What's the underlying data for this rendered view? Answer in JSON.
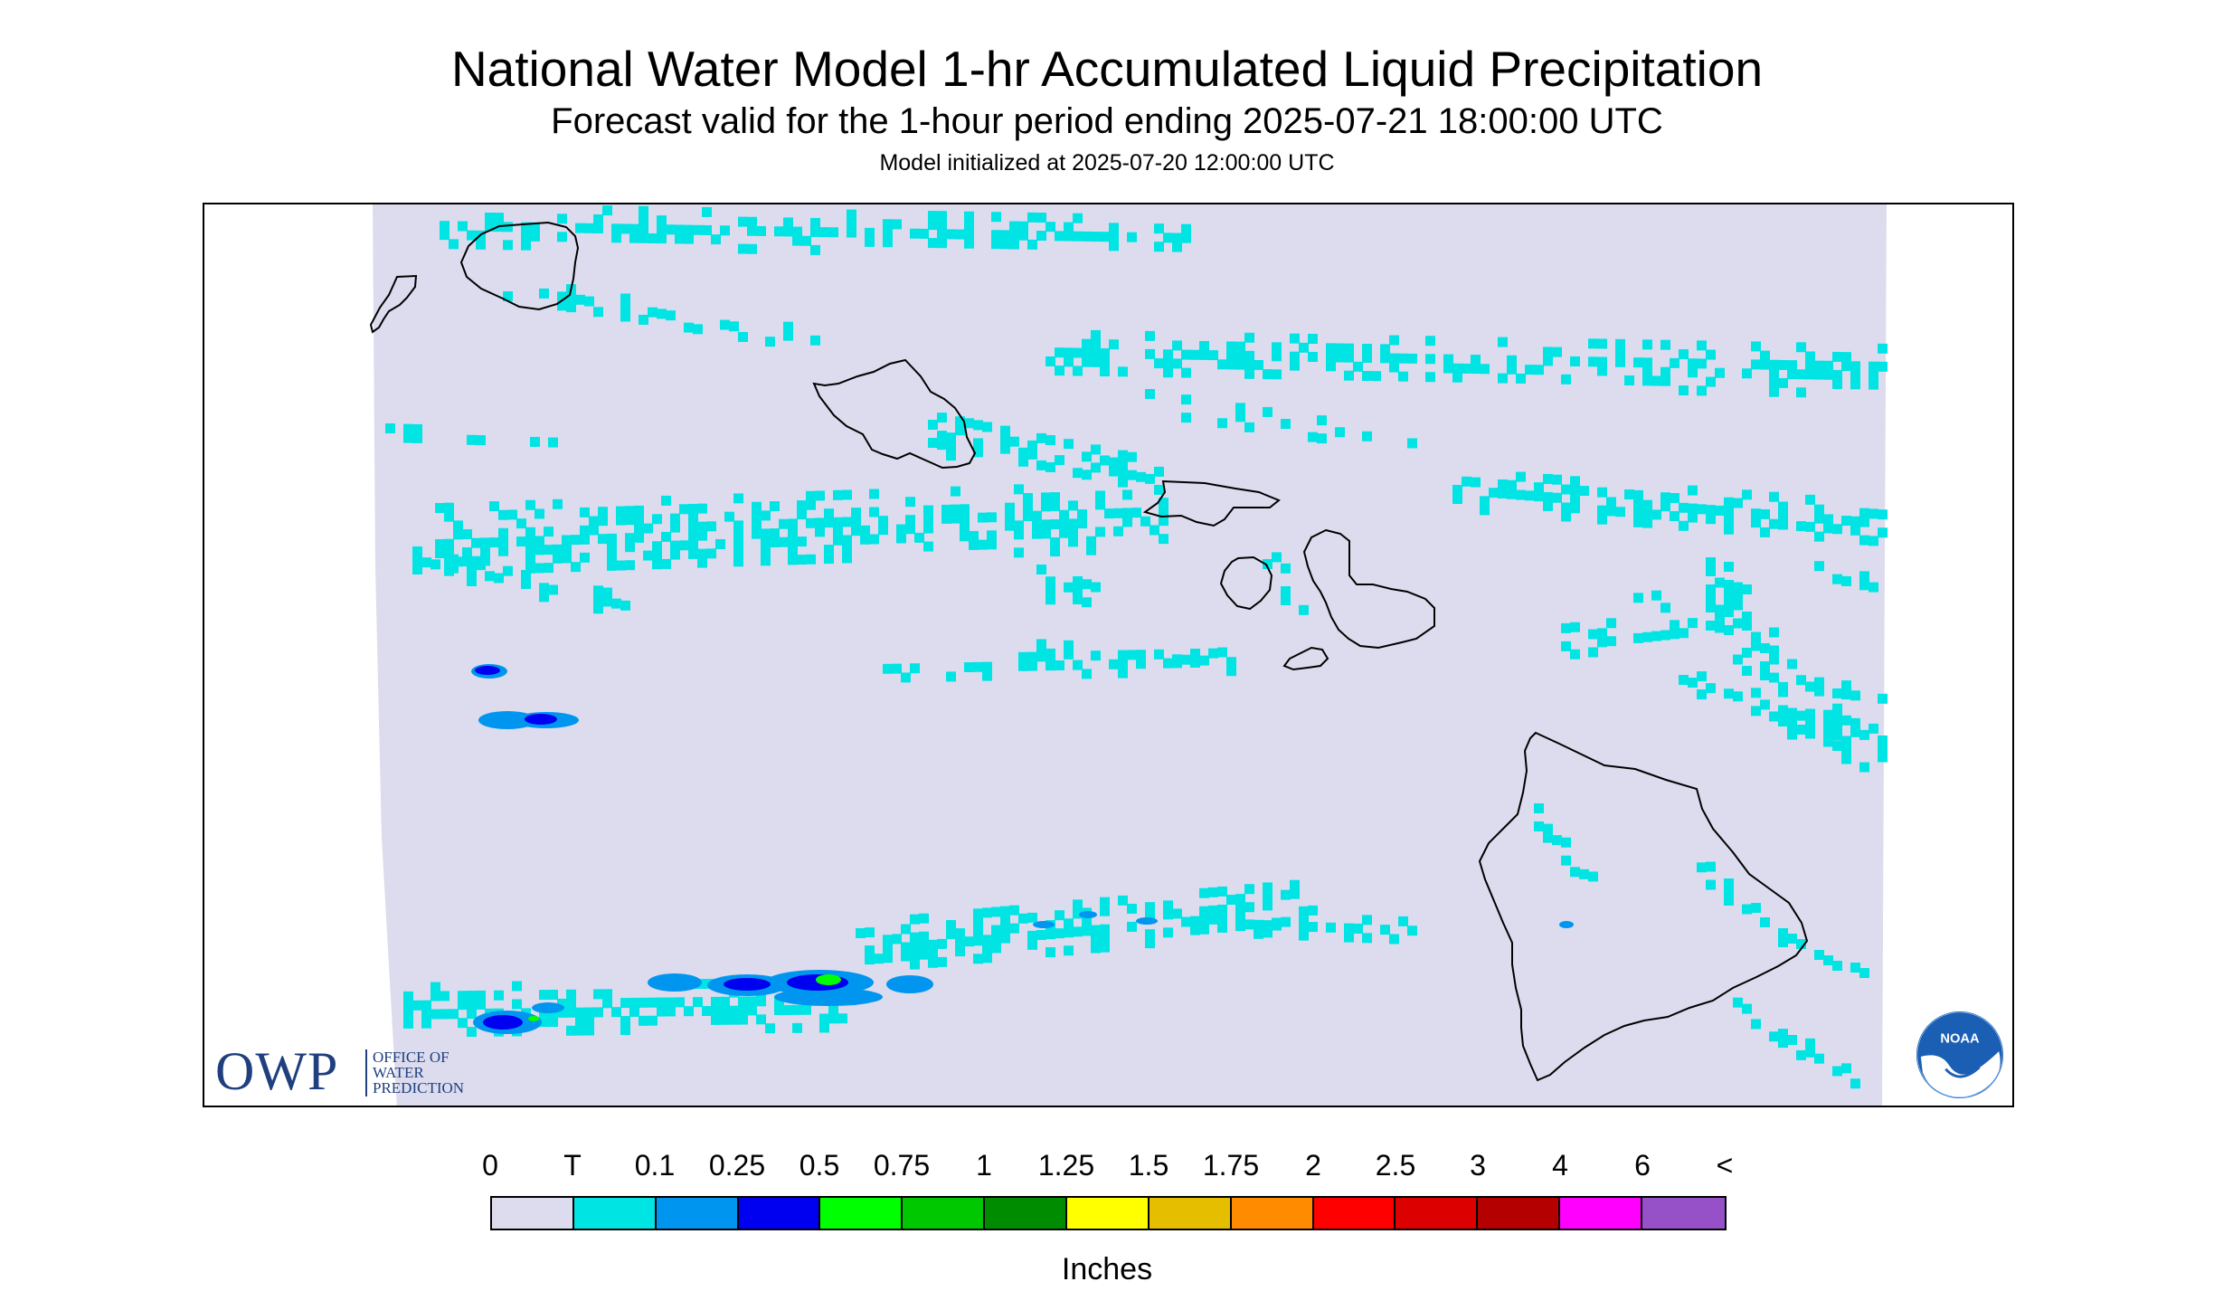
{
  "title": "National Water Model 1-hr Accumulated Liquid Precipitation",
  "subtitle": "Forecast valid for the 1-hour period ending 2025-07-21 18:00:00 UTC",
  "init_line": "Model initialized at 2025-07-20 12:00:00 UTC",
  "logos": {
    "owp_letters": "OWP",
    "owp_line1": "OFFICE OF",
    "owp_line2": "WATER",
    "owp_line3": "PREDICTION",
    "noaa": "NOAA"
  },
  "legend": {
    "units": "Inches",
    "labels": [
      "0",
      "T",
      "0.1",
      "0.25",
      "0.5",
      "0.75",
      "1",
      "1.25",
      "1.5",
      "1.75",
      "2",
      "2.5",
      "3",
      "4",
      "6",
      "<"
    ],
    "colors": [
      "#dcdcee",
      "#00e4e4",
      "#0096f0",
      "#0000f0",
      "#00ff00",
      "#00c800",
      "#008c00",
      "#ffff00",
      "#e6be00",
      "#ff8c00",
      "#ff0000",
      "#dc0000",
      "#b40000",
      "#ff00ff",
      "#9650c8"
    ]
  },
  "map": {
    "background_color": "#dcdcee",
    "islands": [
      "Niihau",
      "Kauai",
      "Oahu",
      "Molokai",
      "Lanai",
      "Maui",
      "Kahoolawe",
      "Hawaii"
    ]
  }
}
